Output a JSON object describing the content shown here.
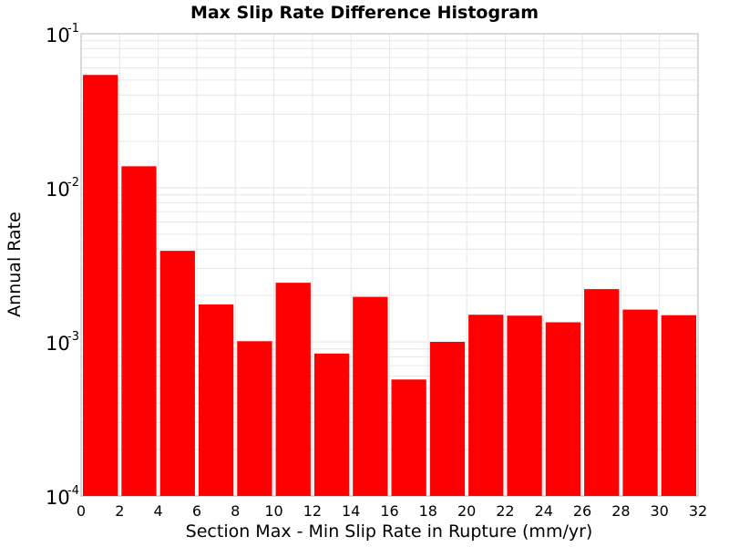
{
  "chart_data": {
    "type": "bar",
    "title": "Max Slip Rate Difference Histogram",
    "xlabel": "Section Max - Min Slip Rate in Rupture (mm/yr)",
    "ylabel": "Annual Rate",
    "xlim": [
      0,
      32
    ],
    "ylim": [
      0.0001,
      0.1
    ],
    "yscale": "log",
    "bin_width": 2,
    "x": [
      1,
      3,
      5,
      7,
      9,
      11,
      13,
      15,
      17,
      19,
      21,
      23,
      25,
      27,
      29,
      31
    ],
    "values": [
      0.054,
      0.0138,
      0.0039,
      0.00175,
      0.00101,
      0.00242,
      0.00084,
      0.00196,
      0.00057,
      0.001,
      0.0015,
      0.00148,
      0.00134,
      0.0022,
      0.00162,
      0.00149
    ],
    "x_ticks": [
      "0",
      "2",
      "4",
      "6",
      "8",
      "10",
      "12",
      "14",
      "16",
      "18",
      "20",
      "22",
      "24",
      "26",
      "28",
      "30",
      "32"
    ],
    "y_ticks": [
      {
        "base": "10",
        "exp": "-1"
      },
      {
        "base": "10",
        "exp": "-2"
      },
      {
        "base": "10",
        "exp": "-3"
      },
      {
        "base": "10",
        "exp": "-4"
      }
    ],
    "bar_color": "#ff0000",
    "grid": true,
    "legend": "none"
  }
}
